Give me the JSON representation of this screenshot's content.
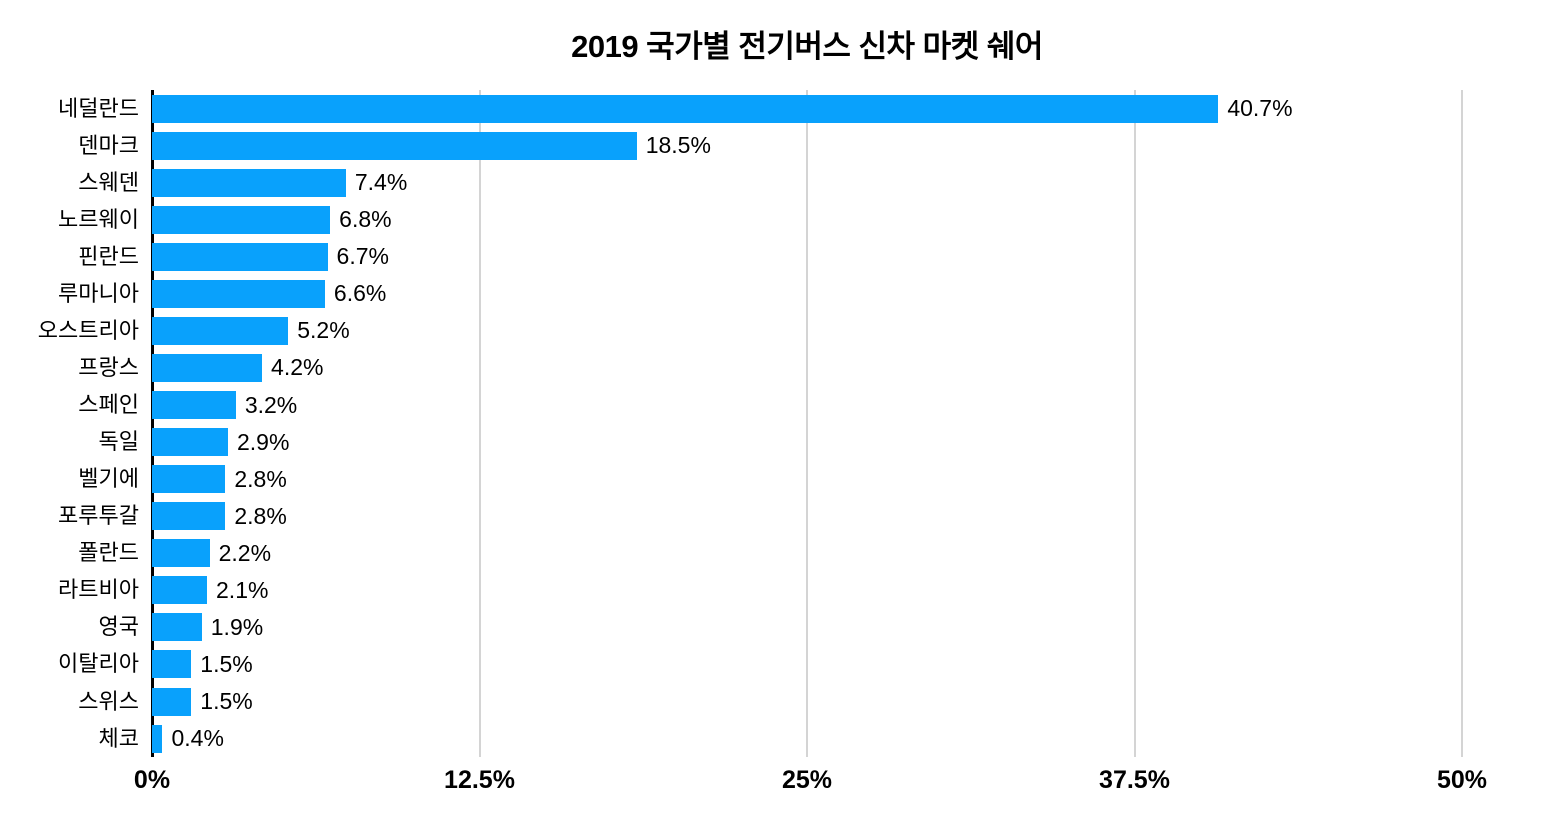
{
  "page": {
    "background": "#ffffff"
  },
  "chart_data": {
    "type": "bar",
    "orientation": "horizontal",
    "title": "2019 국가별 전기버스 신차 마켓 쉐어",
    "categories": [
      "네덜란드",
      "덴마크",
      "스웨덴",
      "노르웨이",
      "핀란드",
      "루마니아",
      "오스트리아",
      "프랑스",
      "스페인",
      "독일",
      "벨기에",
      "포루투갈",
      "폴란드",
      "라트비아",
      "영국",
      "이탈리아",
      "스위스",
      "체코"
    ],
    "values": [
      40.7,
      18.5,
      7.4,
      6.8,
      6.7,
      6.6,
      5.2,
      4.2,
      3.2,
      2.9,
      2.8,
      2.8,
      2.2,
      2.1,
      1.9,
      1.5,
      1.5,
      0.4
    ],
    "value_labels": [
      "40.7%",
      "18.5%",
      "7.4%",
      "6.8%",
      "6.7%",
      "6.6%",
      "5.2%",
      "4.2%",
      "3.2%",
      "2.9%",
      "2.8%",
      "2.8%",
      "2.2%",
      "2.1%",
      "1.9%",
      "1.5%",
      "1.5%",
      "0.4%"
    ],
    "xlabel": "",
    "ylabel": "",
    "xlim": [
      0,
      50
    ],
    "x_ticks": [
      {
        "value": 0,
        "label": "0%"
      },
      {
        "value": 12.5,
        "label": "12.5%"
      },
      {
        "value": 25,
        "label": "25%"
      },
      {
        "value": 37.5,
        "label": "37.5%"
      },
      {
        "value": 50,
        "label": "50%"
      }
    ],
    "grid": "vertical",
    "legend": "none",
    "colors": {
      "bar": "#09A1FC",
      "gridline": "#D4D4D4",
      "axis_line": "#000000",
      "text": "#000000"
    }
  }
}
